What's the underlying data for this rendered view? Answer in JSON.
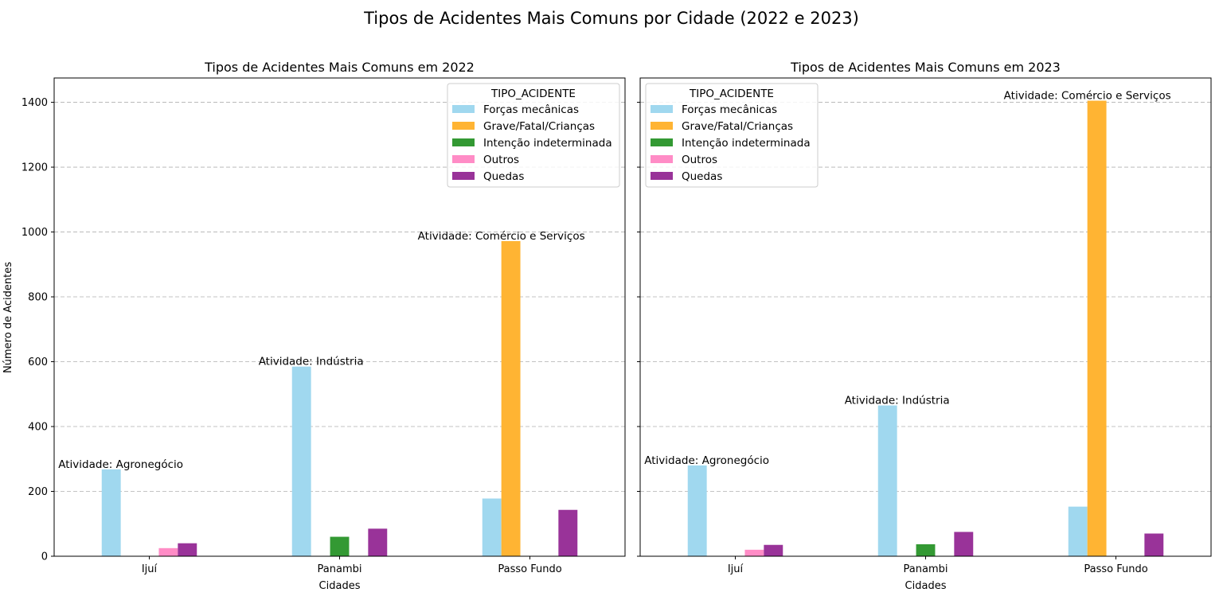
{
  "chart_data": {
    "title": "Tipos de Acidentes Mais Comuns por Cidade (2022 e 2023)",
    "ylabel": "Número de Acidentes",
    "ylim": [
      0,
      1475
    ],
    "yticks": [
      0,
      200,
      400,
      600,
      800,
      1000,
      1200,
      1400
    ],
    "grid": "y dashed",
    "legend_title": "TIPO_ACIDENTE",
    "legend_placement": "upper",
    "colors": {
      "Forças mecânicas": "#a0d8ef",
      "Grave/Fatal/Crianças": "#ffb433",
      "Intenção indeterminada": "#339933",
      "Outros": "#ff8cc6",
      "Quedas": "#993399"
    },
    "subplots": [
      {
        "type": "bar",
        "title": "Tipos de Acidentes Mais Comuns em 2022",
        "xlabel": "Cidades",
        "categories": [
          "Ijuí",
          "Panambi",
          "Passo Fundo"
        ],
        "series": [
          {
            "name": "Forças mecânicas",
            "values": [
              268,
              585,
              178
            ]
          },
          {
            "name": "Grave/Fatal/Crianças",
            "values": [
              0,
              0,
              972
            ]
          },
          {
            "name": "Intenção indeterminada",
            "values": [
              0,
              60,
              0
            ]
          },
          {
            "name": "Outros",
            "values": [
              25,
              0,
              0
            ]
          },
          {
            "name": "Quedas",
            "values": [
              40,
              85,
              143
            ]
          }
        ],
        "annotations": [
          {
            "category": "Ijuí",
            "text": "Atividade: Agronegócio",
            "y": 268
          },
          {
            "category": "Panambi",
            "text": "Atividade: Indústria",
            "y": 585
          },
          {
            "category": "Passo Fundo",
            "text": "Atividade: Comércio e Serviços",
            "y": 972
          }
        ],
        "legend_loc": "upper right"
      },
      {
        "type": "bar",
        "title": "Tipos de Acidentes Mais Comuns em 2023",
        "xlabel": "Cidades",
        "categories": [
          "Ijuí",
          "Panambi",
          "Passo Fundo"
        ],
        "series": [
          {
            "name": "Forças mecânicas",
            "values": [
              280,
              465,
              153
            ]
          },
          {
            "name": "Grave/Fatal/Crianças",
            "values": [
              0,
              0,
              1405
            ]
          },
          {
            "name": "Intenção indeterminada",
            "values": [
              0,
              37,
              0
            ]
          },
          {
            "name": "Outros",
            "values": [
              20,
              0,
              0
            ]
          },
          {
            "name": "Quedas",
            "values": [
              35,
              75,
              70
            ]
          }
        ],
        "annotations": [
          {
            "category": "Ijuí",
            "text": "Atividade: Agronegócio",
            "y": 280
          },
          {
            "category": "Panambi",
            "text": "Atividade: Indústria",
            "y": 465
          },
          {
            "category": "Passo Fundo",
            "text": "Atividade: Comércio e Serviços",
            "y": 1405
          }
        ],
        "legend_loc": "upper left"
      }
    ]
  }
}
